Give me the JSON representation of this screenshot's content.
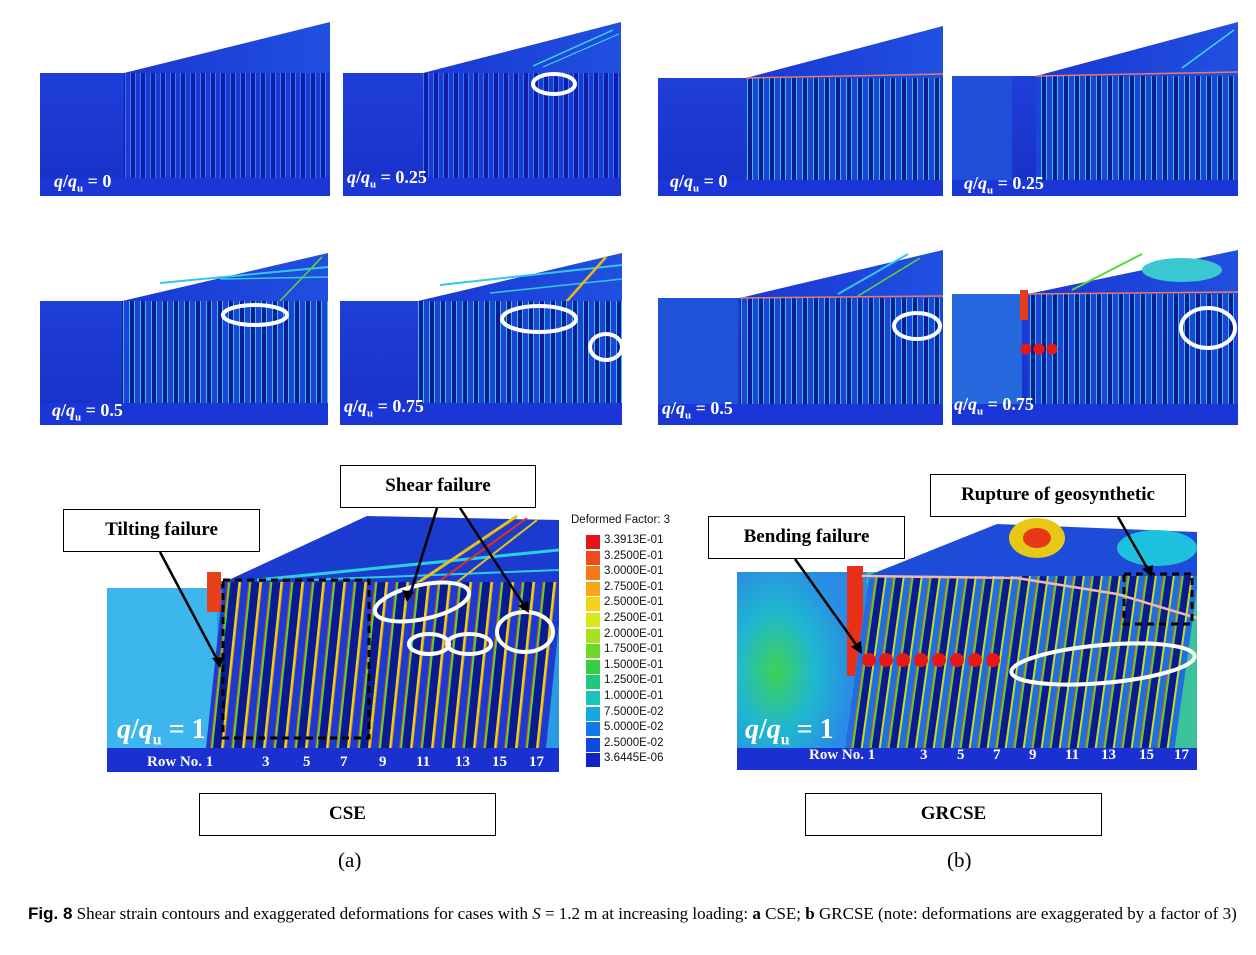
{
  "top_panels": [
    {
      "name": "cse-q0",
      "label_a": "q/",
      "label_q": "q",
      "label_sub": "u",
      "value": " = 0"
    },
    {
      "name": "cse-q025",
      "label_a": "",
      "label_q": "q",
      "label_sub": "u",
      "value": " = 0.25"
    },
    {
      "name": "grcse-q0",
      "value": " = 0"
    },
    {
      "name": "grcse-q025",
      "value": " = 0.25"
    },
    {
      "name": "cse-q05",
      "value": " = 0.5"
    },
    {
      "name": "cse-q075",
      "value": " = 0.75"
    },
    {
      "name": "grcse-q05",
      "value": " = 0.5"
    },
    {
      "name": "grcse-q075",
      "value": " = 0.75"
    }
  ],
  "q_symbol": "q",
  "q_sub": "u",
  "big_a": {
    "value": " = 1",
    "rows_prefix": "Row  No. 1",
    "rows": [
      "3",
      "5",
      "7",
      "9",
      "11",
      "13",
      "15",
      "17"
    ]
  },
  "big_b": {
    "value": " = 1",
    "rows_prefix": "Row  No. 1",
    "rows": [
      "3",
      "5",
      "7",
      "9",
      "11",
      "13",
      "15",
      "17"
    ]
  },
  "callouts": {
    "tilting": "Tilting failure",
    "shear": "Shear failure",
    "bending": "Bending failure",
    "rupture": "Rupture of geosynthetic"
  },
  "legend": {
    "title": "Deformed Factor: 3",
    "entries": [
      {
        "label": "3.3913E-01",
        "color": "#e8141b"
      },
      {
        "label": "3.2500E-01",
        "color": "#ee4a1a"
      },
      {
        "label": "3.0000E-01",
        "color": "#f47a18"
      },
      {
        "label": "2.7500E-01",
        "color": "#f6a616"
      },
      {
        "label": "2.5000E-01",
        "color": "#f4d214"
      },
      {
        "label": "2.2500E-01",
        "color": "#d8e81a"
      },
      {
        "label": "2.0000E-01",
        "color": "#a6e21e"
      },
      {
        "label": "1.7500E-01",
        "color": "#6ed826"
      },
      {
        "label": "1.5000E-01",
        "color": "#33cf3e"
      },
      {
        "label": "1.2500E-01",
        "color": "#1ec97a"
      },
      {
        "label": "1.0000E-01",
        "color": "#1ac4b6"
      },
      {
        "label": "7.5000E-02",
        "color": "#17a8e2"
      },
      {
        "label": "5.0000E-02",
        "color": "#1478ea"
      },
      {
        "label": "2.5000E-02",
        "color": "#1248e2"
      },
      {
        "label": "3.6445E-06",
        "color": "#1222c8"
      }
    ]
  },
  "case_labels": {
    "a": "CSE",
    "b": "GRCSE"
  },
  "sub_labels": {
    "a": "(a)",
    "b": "(b)"
  },
  "caption": {
    "fig": "Fig. 8",
    "text1": "  Shear strain contours and exaggerated deformations for cases with ",
    "s": "S",
    "text2": " = 1.2 m at increasing loading: ",
    "a": "a",
    "text3": " CSE; ",
    "b": "b",
    "text4": " GRCSE (note: deformations are exaggerated by a factor of 3)"
  }
}
